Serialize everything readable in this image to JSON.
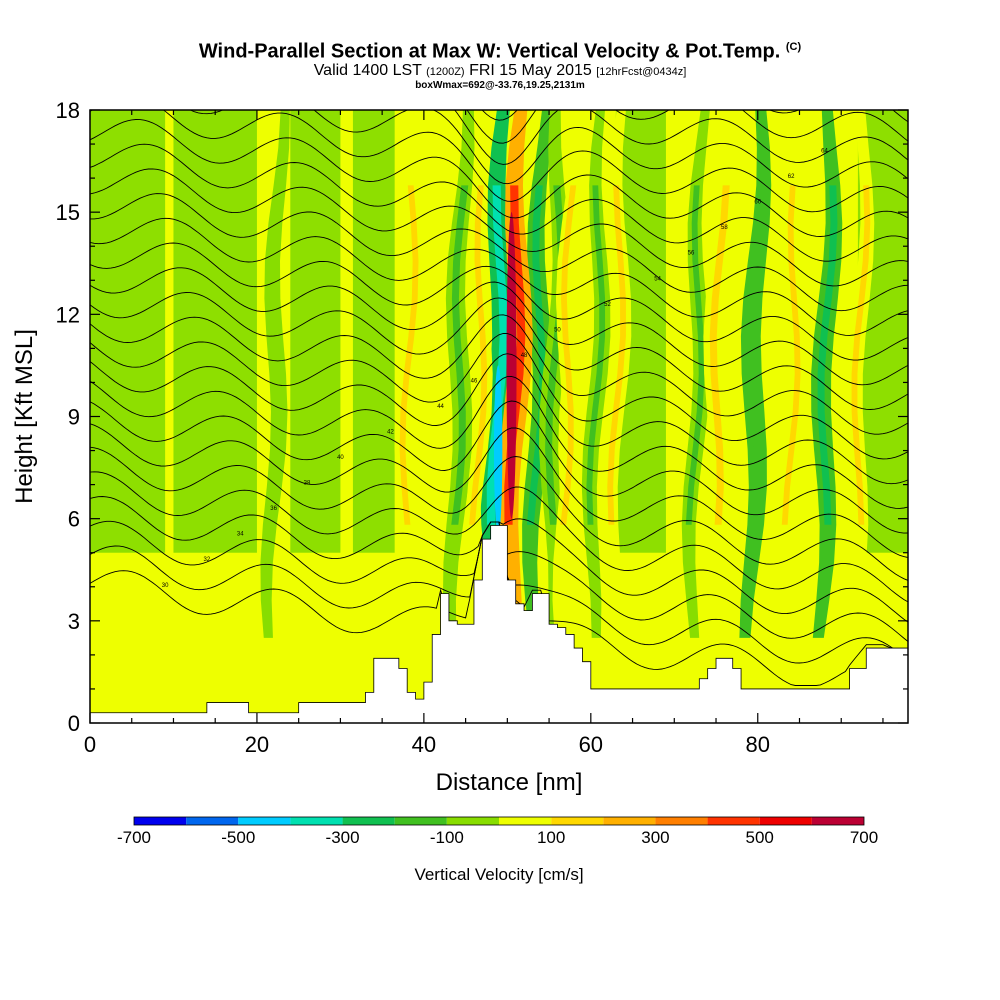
{
  "title": {
    "main": "Wind-Parallel Section at Max W: Vertical Velocity & Pot.Temp.",
    "copyright": "(C)",
    "valid_a": "Valid 1400 LST",
    "valid_z": "(1200Z)",
    "valid_b": "FRI 15 May 2015",
    "forecast": "[12hrFcst@0434z]",
    "box": "boxWmax=692@-33.76,19.25,2131m"
  },
  "chart_data": {
    "type": "heatmap",
    "xlabel": "Distance [nm]",
    "ylabel": "Height [Kft MSL]",
    "xlim": [
      0,
      98
    ],
    "ylim": [
      0,
      18
    ],
    "xticks": [
      0,
      20,
      40,
      60,
      80
    ],
    "yticks": [
      0,
      3,
      6,
      9,
      12,
      15,
      18
    ],
    "colorbar": {
      "title": "Vertical Velocity [cm/s]",
      "ticks": [
        -700,
        -500,
        -300,
        -100,
        100,
        300,
        500,
        700
      ],
      "range": [
        -700,
        700
      ],
      "colors": [
        "#0000ee",
        "#0066ee",
        "#00ccff",
        "#00e0b0",
        "#10c050",
        "#40c020",
        "#88dd00",
        "#eeff00",
        "#ffd800",
        "#ffb000",
        "#ff7f00",
        "#ff3300",
        "#ee0000",
        "#bb0033"
      ]
    },
    "wmax": {
      "value": 692,
      "x_nm": 50.5,
      "height_kft": 7.0
    },
    "terrain": {
      "x": [
        0,
        8,
        13,
        14,
        18,
        19,
        24,
        25,
        30,
        33,
        34,
        36,
        37,
        38,
        39,
        40,
        41,
        42,
        43,
        44,
        45,
        46,
        47,
        48,
        49,
        50,
        51,
        52,
        53,
        54,
        55,
        56,
        57,
        58,
        59,
        60,
        64,
        70,
        71,
        73,
        74,
        75,
        76,
        77,
        78,
        80,
        84,
        88,
        89,
        90,
        91,
        93,
        95,
        98
      ],
      "y": [
        0.3,
        0.3,
        0.3,
        0.6,
        0.6,
        0.3,
        0.3,
        0.6,
        0.6,
        0.9,
        1.9,
        1.9,
        1.6,
        0.9,
        0.7,
        1.2,
        2.6,
        3.8,
        3.0,
        2.9,
        2.9,
        4.2,
        5.4,
        5.8,
        5.8,
        4.2,
        3.5,
        3.3,
        3.8,
        3.8,
        2.9,
        2.8,
        2.6,
        2.2,
        1.8,
        1.0,
        1.0,
        1.0,
        1.0,
        1.3,
        1.6,
        1.9,
        1.9,
        1.6,
        1.0,
        1.0,
        1.0,
        1.0,
        1.0,
        1.0,
        1.6,
        2.2,
        2.2,
        1.9
      ]
    },
    "updraft_bands": [
      {
        "x_nm": 50.8,
        "w": 480
      },
      {
        "x_nm": 46.5,
        "w": 140
      },
      {
        "x_nm": 57.0,
        "w": 150
      },
      {
        "x_nm": 75.0,
        "w": 160
      },
      {
        "x_nm": 92.0,
        "w": 140
      },
      {
        "x_nm": 38.0,
        "w": 100
      },
      {
        "x_nm": 63.0,
        "w": 110
      },
      {
        "x_nm": 84.0,
        "w": 120
      }
    ],
    "downdraft_bands": [
      {
        "x_nm": 48.7,
        "w": -380
      },
      {
        "x_nm": 53.5,
        "w": -220
      },
      {
        "x_nm": 44.0,
        "w": -180
      },
      {
        "x_nm": 79.5,
        "w": -200
      },
      {
        "x_nm": 88.0,
        "w": -220
      },
      {
        "x_nm": 55.5,
        "w": -160
      },
      {
        "x_nm": 60.5,
        "w": -120
      },
      {
        "x_nm": 72.5,
        "w": -110
      },
      {
        "x_nm": 22.0,
        "w": -100
      }
    ],
    "isentropes": {
      "count": 30,
      "base_kft": 0.6,
      "spacing_kft": 0.6,
      "label_values": [
        "30",
        "32",
        "34",
        "36",
        "38",
        "40",
        "42",
        "44",
        "46",
        "48",
        "50",
        "52",
        "54",
        "56",
        "58",
        "60",
        "62",
        "64"
      ]
    }
  }
}
